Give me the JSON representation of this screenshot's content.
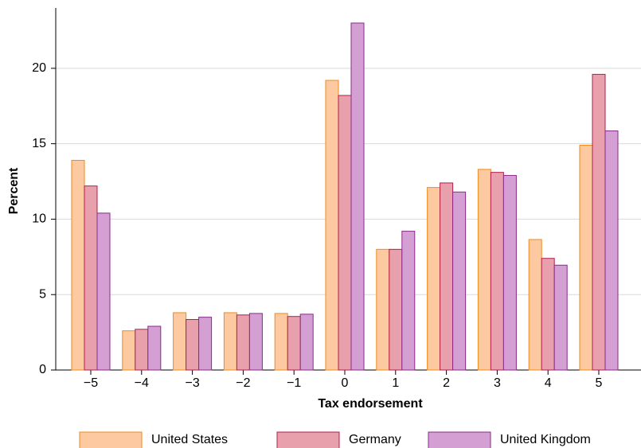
{
  "chart_data": {
    "type": "bar",
    "x_label": "Tax endorsement",
    "y_label": "Percent",
    "categories": [
      "−5",
      "−4",
      "−3",
      "−2",
      "−1",
      "0",
      "1",
      "2",
      "3",
      "4",
      "5"
    ],
    "series": [
      {
        "name": "United States",
        "color": "#fdc9a0",
        "edgecolor": "#f08a1e",
        "values": [
          13.9,
          2.6,
          3.8,
          3.8,
          3.75,
          19.2,
          8.0,
          12.1,
          13.3,
          8.65,
          14.9
        ]
      },
      {
        "name": "Germany",
        "color": "#e8a0ad",
        "edgecolor": "#b0204a",
        "values": [
          12.2,
          2.7,
          3.35,
          3.65,
          3.55,
          18.2,
          8.0,
          12.4,
          13.1,
          7.4,
          19.6
        ]
      },
      {
        "name": "United Kingdom",
        "color": "#d4a0d4",
        "edgecolor": "#8a2a8a",
        "values": [
          10.4,
          2.9,
          3.5,
          3.75,
          3.7,
          23.0,
          9.2,
          11.8,
          12.9,
          6.95,
          15.85
        ]
      }
    ],
    "ylim": [
      0,
      24
    ],
    "yticks": [
      0,
      5,
      10,
      15,
      20
    ],
    "grid": true,
    "legend": "bottom"
  }
}
